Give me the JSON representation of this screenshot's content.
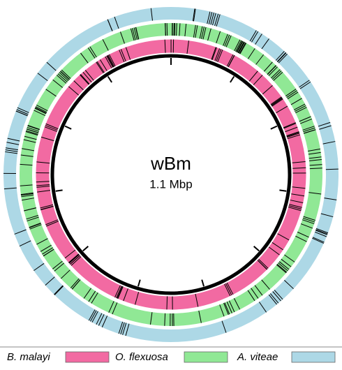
{
  "center": {
    "title": "wBm",
    "subtitle": "1.1 Mbp"
  },
  "legend": [
    {
      "label": "B. malayi"
    },
    {
      "label": "O. flexuosa"
    },
    {
      "label": "A. viteae"
    }
  ]
}
